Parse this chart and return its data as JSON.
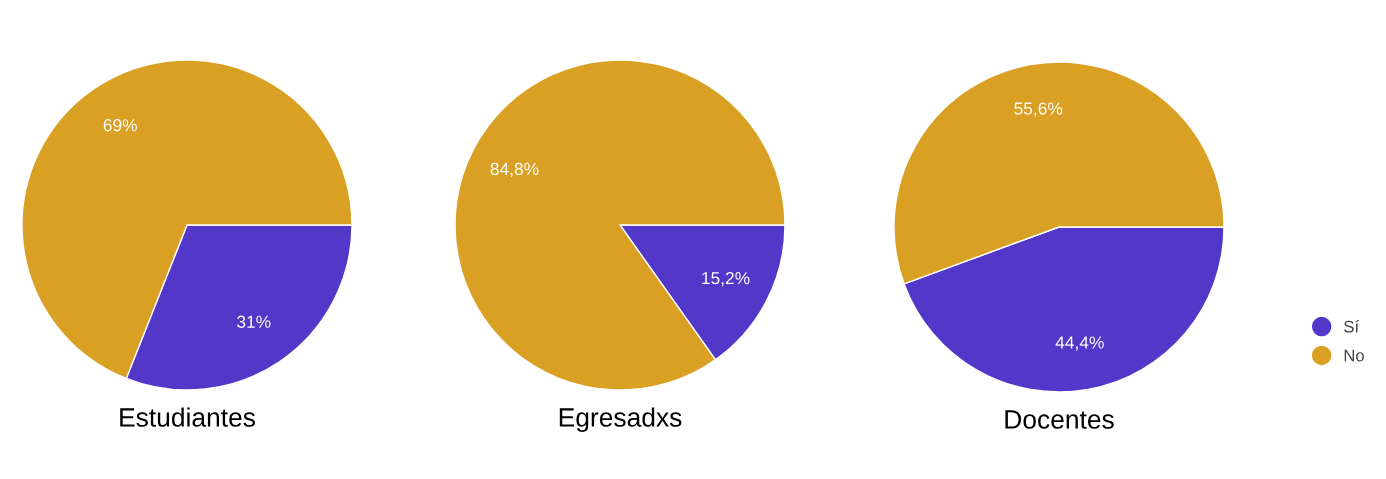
{
  "chart_data": [
    {
      "type": "pie",
      "title": "Estudiantes",
      "values": [
        31,
        69
      ],
      "value_labels": [
        "31%",
        "69%"
      ],
      "colors": [
        "#5237c9",
        "#d9a024"
      ]
    },
    {
      "type": "pie",
      "title": "Egresadxs",
      "values": [
        15.2,
        84.8
      ],
      "value_labels": [
        "15,2%",
        "84,8%"
      ],
      "colors": [
        "#5237c9",
        "#d9a024"
      ]
    },
    {
      "type": "pie",
      "title": "Docentes",
      "categories": [
        "Sí",
        "No"
      ],
      "values": [
        44.4,
        55.6
      ],
      "value_labels": [
        "44,4%",
        "55,6%"
      ],
      "colors": [
        "#5237c9",
        "#d9a024"
      ],
      "legend": "right"
    }
  ]
}
